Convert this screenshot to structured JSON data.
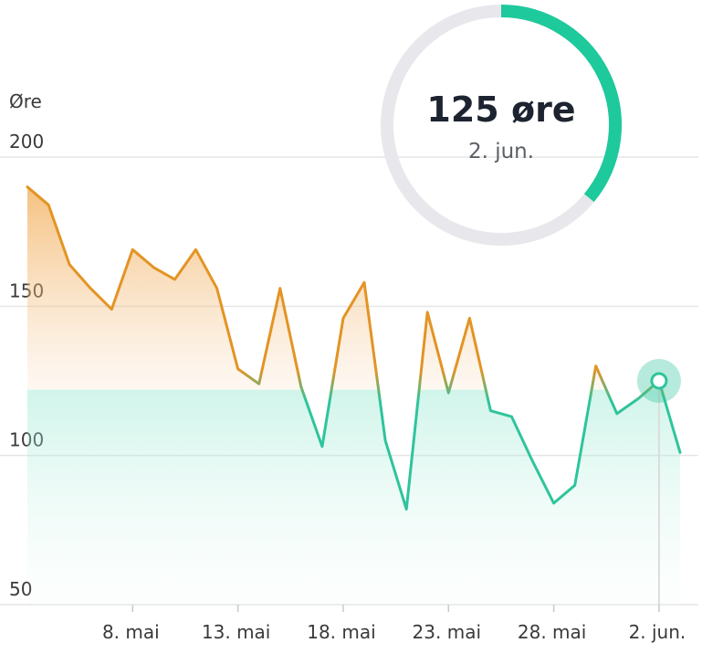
{
  "chart_data": {
    "type": "area",
    "ylabel": "Øre",
    "ylim": [
      50,
      200
    ],
    "y_ticks": [
      200,
      150,
      100,
      50
    ],
    "x_tick_labels": [
      "8. mai",
      "13. mai",
      "18. mai",
      "23. mai",
      "28. mai",
      "2. jun."
    ],
    "x_tick_dates": [
      "2024-05-08",
      "2024-05-13",
      "2024-05-18",
      "2024-05-23",
      "2024-05-28",
      "2024-06-02"
    ],
    "x": [
      "2024-05-03",
      "2024-05-04",
      "2024-05-05",
      "2024-05-06",
      "2024-05-07",
      "2024-05-08",
      "2024-05-09",
      "2024-05-10",
      "2024-05-11",
      "2024-05-12",
      "2024-05-13",
      "2024-05-14",
      "2024-05-15",
      "2024-05-16",
      "2024-05-17",
      "2024-05-18",
      "2024-05-19",
      "2024-05-20",
      "2024-05-21",
      "2024-05-22",
      "2024-05-23",
      "2024-05-24",
      "2024-05-25",
      "2024-05-26",
      "2024-05-27",
      "2024-05-28",
      "2024-05-29",
      "2024-05-30",
      "2024-05-31",
      "2024-06-01",
      "2024-06-02",
      "2024-06-03"
    ],
    "series": [
      {
        "values": [
          190,
          184,
          164,
          156,
          149,
          169,
          163,
          159,
          169,
          156,
          129,
          124,
          156,
          123,
          103,
          146,
          158,
          105,
          82,
          148,
          121,
          146,
          115,
          113,
          98,
          84,
          90,
          130,
          114,
          119,
          125,
          101
        ]
      }
    ],
    "threshold": 122,
    "colors": {
      "high": "#e39424",
      "low": "#2fc49c",
      "grid": "#e6e6e6"
    },
    "highlight": {
      "date": "2024-06-02",
      "value": 125
    }
  },
  "gauge": {
    "value_label": "125 øre",
    "date_label": "2. jun.",
    "fraction": 0.36,
    "track_color": "#e8e8ec",
    "fill_color": "#1ec99c"
  }
}
